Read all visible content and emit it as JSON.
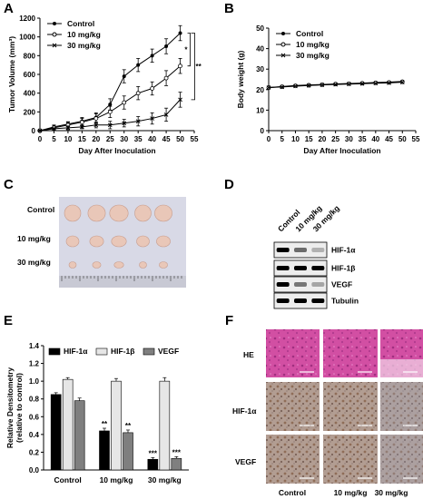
{
  "panels": {
    "A": "A",
    "B": "B",
    "C": "C",
    "D": "D",
    "E": "E",
    "F": "F"
  },
  "colors": {
    "ink": "#000000",
    "bar_hif1a": "#000000",
    "bar_hif1b": "#e6e6e6",
    "bar_vegf": "#7f7f7f",
    "tissue_bg": "#dfe0ea",
    "he_stain": "#d24fa3",
    "ihc_bg": "#c2b6b0",
    "ihc_brown": "#9c6a3e"
  },
  "chart_data": [
    {
      "panel": "A",
      "type": "line",
      "xlabel": "Day After Inoculation",
      "ylabel": "Tumor Volume (mm³)",
      "xlim": [
        0,
        55
      ],
      "ylim": [
        0,
        1200
      ],
      "xticks": [
        0,
        5,
        10,
        15,
        20,
        25,
        30,
        35,
        40,
        45,
        50,
        55
      ],
      "yticks": [
        0,
        200,
        400,
        600,
        800,
        1000,
        1200
      ],
      "x": [
        0,
        5,
        10,
        15,
        20,
        25,
        30,
        35,
        40,
        45,
        50
      ],
      "series": [
        {
          "name": "Control",
          "marker": "filled",
          "values": [
            0,
            40,
            70,
            100,
            140,
            280,
            580,
            700,
            800,
            900,
            1040
          ],
          "err": [
            10,
            20,
            25,
            40,
            50,
            60,
            70,
            70,
            70,
            80,
            80
          ]
        },
        {
          "name": "10 mg/kg",
          "marker": "open",
          "values": [
            0,
            30,
            60,
            90,
            130,
            200,
            300,
            400,
            450,
            560,
            690
          ],
          "err": [
            10,
            20,
            30,
            40,
            50,
            60,
            70,
            70,
            70,
            80,
            80
          ]
        },
        {
          "name": "30 mg/kg",
          "marker": "cross",
          "values": [
            0,
            20,
            30,
            40,
            60,
            60,
            80,
            100,
            130,
            170,
            330
          ],
          "err": [
            5,
            10,
            20,
            20,
            30,
            40,
            40,
            50,
            60,
            70,
            80
          ]
        }
      ],
      "annotations": [
        "*",
        "**"
      ],
      "legend": "top-left"
    },
    {
      "panel": "B",
      "type": "line",
      "xlabel": "Day After Inoculation",
      "ylabel": "Body weight (g)",
      "xlim": [
        0,
        55
      ],
      "ylim": [
        0,
        50
      ],
      "xticks": [
        0,
        5,
        10,
        15,
        20,
        25,
        30,
        35,
        40,
        45,
        50,
        55
      ],
      "yticks": [
        0,
        10,
        20,
        30,
        40,
        50
      ],
      "x": [
        0,
        5,
        10,
        15,
        20,
        25,
        30,
        35,
        40,
        45,
        50
      ],
      "series": [
        {
          "name": "Control",
          "marker": "filled",
          "values": [
            21,
            21.5,
            22,
            22.3,
            22.5,
            22.8,
            23,
            23.2,
            23.5,
            23.7,
            24
          ]
        },
        {
          "name": "10 mg/kg",
          "marker": "open",
          "values": [
            21,
            21.4,
            21.8,
            22.1,
            22.4,
            22.7,
            22.9,
            23.1,
            23.3,
            23.5,
            23.8
          ]
        },
        {
          "name": "30 mg/kg",
          "marker": "cross",
          "values": [
            21,
            21.3,
            21.7,
            22,
            22.3,
            22.5,
            22.7,
            22.9,
            23.1,
            23.3,
            23.6
          ]
        }
      ],
      "legend": "top-left"
    },
    {
      "panel": "E",
      "type": "bar",
      "ylabel": "Relative Densitometry (relative to control)",
      "ylim": [
        0,
        1.4
      ],
      "yticks": [
        0.0,
        0.2,
        0.4,
        0.6,
        0.8,
        1.0,
        1.2,
        1.4
      ],
      "categories": [
        "Control",
        "10 mg/kg",
        "30 mg/kg"
      ],
      "series": [
        {
          "name": "HIF-1α",
          "values": [
            0.85,
            0.44,
            0.12
          ],
          "err": [
            0.02,
            0.03,
            0.02
          ]
        },
        {
          "name": "HIF-1β",
          "values": [
            1.02,
            1.0,
            1.0
          ],
          "err": [
            0.02,
            0.03,
            0.04
          ]
        },
        {
          "name": "VEGF",
          "values": [
            0.78,
            0.42,
            0.13
          ],
          "err": [
            0.03,
            0.03,
            0.02
          ]
        }
      ],
      "annotations": [
        {
          "category": "10 mg/kg",
          "series": "HIF-1α",
          "text": "**"
        },
        {
          "category": "10 mg/kg",
          "series": "VEGF",
          "text": "**"
        },
        {
          "category": "30 mg/kg",
          "series": "HIF-1α",
          "text": "***"
        },
        {
          "category": "30 mg/kg",
          "series": "VEGF",
          "text": "***"
        }
      ],
      "legend": "top"
    }
  ],
  "panelC": {
    "rows": [
      "Control",
      "10 mg/kg",
      "30 mg/kg"
    ]
  },
  "panelD": {
    "columns": [
      "Control",
      "10 mg/kg",
      "30 mg/kg"
    ],
    "bands": [
      "HIF-1α",
      "HIF-1β",
      "VEGF",
      "Tubulin"
    ],
    "intensity": [
      [
        1.0,
        0.55,
        0.25
      ],
      [
        1.0,
        1.0,
        1.0
      ],
      [
        1.0,
        0.5,
        0.3
      ],
      [
        1.0,
        1.0,
        1.0
      ]
    ]
  },
  "panelF": {
    "rows": [
      "HE",
      "HIF-1α",
      "VEGF"
    ],
    "columns": [
      "Control",
      "10 mg/kg",
      "30 mg/kg"
    ]
  }
}
